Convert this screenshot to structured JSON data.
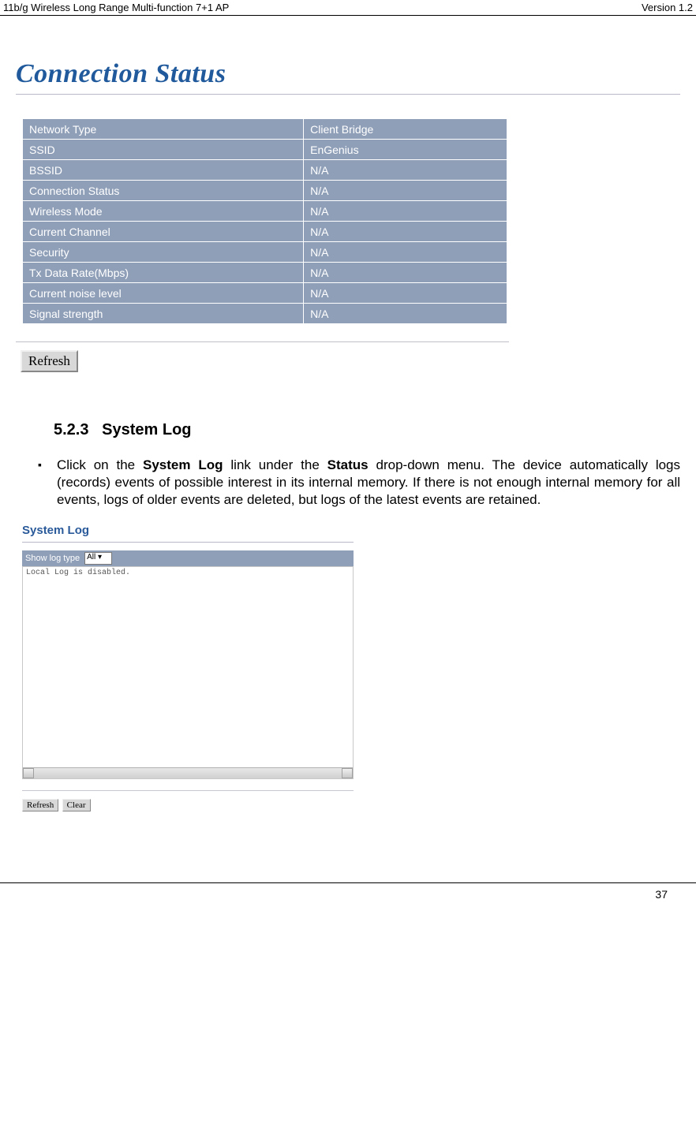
{
  "header": {
    "left": "11b/g Wireless Long Range Multi-function 7+1 AP",
    "right": "Version 1.2"
  },
  "page_title": "Connection Status",
  "status_rows": [
    {
      "label": "Network Type",
      "value": "Client Bridge"
    },
    {
      "label": "SSID",
      "value": "EnGenius"
    },
    {
      "label": "BSSID",
      "value": "N/A"
    },
    {
      "label": "Connection Status",
      "value": "N/A"
    },
    {
      "label": "Wireless Mode",
      "value": "N/A"
    },
    {
      "label": "Current Channel",
      "value": "N/A"
    },
    {
      "label": "Security",
      "value": "N/A"
    },
    {
      "label": "Tx Data Rate(Mbps)",
      "value": "N/A"
    },
    {
      "label": "Current noise level",
      "value": "N/A"
    },
    {
      "label": "Signal strength",
      "value": "N/A"
    }
  ],
  "refresh_label": "Refresh",
  "section": {
    "number": "5.2.3",
    "title": "System Log",
    "para_pre": "Click on the ",
    "para_bold1": "System Log",
    "para_mid": " link under the ",
    "para_bold2": "Status",
    "para_post": " drop-down menu. The device automatically logs (records) events of possible interest in its internal memory. If there is not enough internal memory for all events, logs of older events are deleted, but logs of the latest events are retained."
  },
  "syslog": {
    "title": "System Log",
    "show_label": "Show log type",
    "show_value": "All",
    "log_text": "Local Log is disabled.",
    "refresh": "Refresh",
    "clear": "Clear"
  },
  "footer": {
    "page": "37"
  }
}
